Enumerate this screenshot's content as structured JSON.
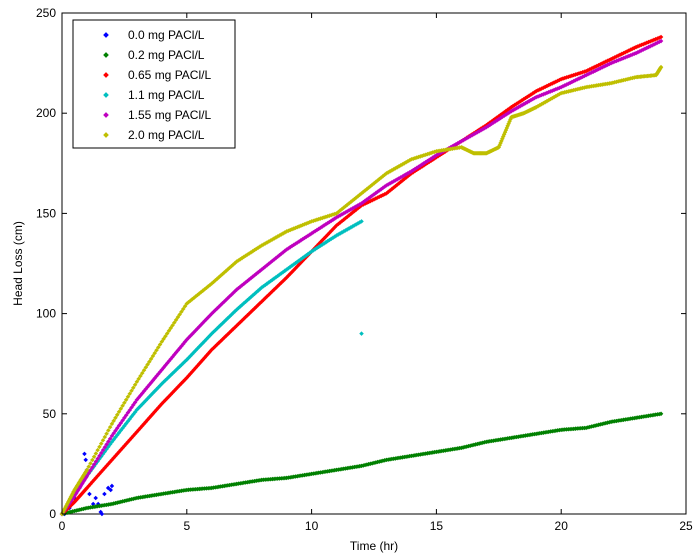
{
  "chart_data": {
    "type": "scatter",
    "title": "",
    "xlabel": "Time (hr)",
    "ylabel": "Head Loss (cm)",
    "xlim": [
      0,
      25
    ],
    "ylim": [
      0,
      250
    ],
    "xticks": [
      "0",
      "5",
      "10",
      "15",
      "20",
      "25"
    ],
    "yticks": [
      "0",
      "50",
      "100",
      "150",
      "200",
      "250"
    ],
    "grid": false,
    "legend_position": "top-left",
    "series": [
      {
        "name": "0.0 mg PACl/L",
        "color": "#0000ff",
        "points": [
          [
            0.1,
            0
          ],
          [
            0.3,
            3
          ],
          [
            0.5,
            8
          ],
          [
            0.7,
            13
          ],
          [
            0.9,
            30
          ],
          [
            0.95,
            27
          ],
          [
            1.0,
            22
          ],
          [
            1.1,
            10
          ],
          [
            1.25,
            5
          ],
          [
            1.35,
            8
          ],
          [
            1.45,
            5
          ],
          [
            1.55,
            1
          ],
          [
            1.6,
            0
          ],
          [
            1.7,
            10
          ],
          [
            1.85,
            13
          ],
          [
            1.95,
            12
          ],
          [
            2.0,
            14
          ]
        ]
      },
      {
        "name": "0.2 mg PACl/L",
        "color": "#008000",
        "points": [
          [
            0,
            0
          ],
          [
            1,
            3
          ],
          [
            2,
            5
          ],
          [
            3,
            8
          ],
          [
            4,
            10
          ],
          [
            5,
            12
          ],
          [
            6,
            13
          ],
          [
            7,
            15
          ],
          [
            8,
            17
          ],
          [
            9,
            18
          ],
          [
            10,
            20
          ],
          [
            11,
            22
          ],
          [
            12,
            24
          ],
          [
            13,
            27
          ],
          [
            14,
            29
          ],
          [
            15,
            31
          ],
          [
            16,
            33
          ],
          [
            17,
            36
          ],
          [
            18,
            38
          ],
          [
            19,
            40
          ],
          [
            20,
            42
          ],
          [
            21,
            43
          ],
          [
            22,
            46
          ],
          [
            23,
            48
          ],
          [
            24,
            50
          ]
        ]
      },
      {
        "name": "0.65 mg PACl/L",
        "color": "#ff0000",
        "points": [
          [
            0,
            0
          ],
          [
            0.5,
            6
          ],
          [
            1,
            13
          ],
          [
            2,
            27
          ],
          [
            3,
            41
          ],
          [
            4,
            55
          ],
          [
            5,
            68
          ],
          [
            6,
            82
          ],
          [
            7,
            94
          ],
          [
            8,
            106
          ],
          [
            9,
            118
          ],
          [
            10,
            131
          ],
          [
            11,
            144
          ],
          [
            12,
            154
          ],
          [
            13,
            160
          ],
          [
            14,
            170
          ],
          [
            15,
            178
          ],
          [
            16,
            186
          ],
          [
            17,
            194
          ],
          [
            18,
            203
          ],
          [
            19,
            211
          ],
          [
            20,
            217
          ],
          [
            21,
            221
          ],
          [
            22,
            227
          ],
          [
            23,
            233
          ],
          [
            24,
            238
          ]
        ]
      },
      {
        "name": "1.1 mg PACl/L",
        "color": "#00bfbf",
        "points": [
          [
            0,
            0
          ],
          [
            0.5,
            10
          ],
          [
            1,
            19
          ],
          [
            2,
            36
          ],
          [
            3,
            52
          ],
          [
            4,
            65
          ],
          [
            5,
            77
          ],
          [
            6,
            90
          ],
          [
            7,
            102
          ],
          [
            8,
            113
          ],
          [
            9,
            122
          ],
          [
            10,
            131
          ],
          [
            11,
            139
          ],
          [
            12,
            146
          ],
          [
            12.0,
            90
          ]
        ]
      },
      {
        "name": "1.55 mg PACl/L",
        "color": "#bf00bf",
        "points": [
          [
            0,
            0
          ],
          [
            0.5,
            9
          ],
          [
            1,
            19
          ],
          [
            2,
            39
          ],
          [
            3,
            57
          ],
          [
            4,
            72
          ],
          [
            5,
            87
          ],
          [
            6,
            100
          ],
          [
            7,
            112
          ],
          [
            8,
            122
          ],
          [
            9,
            132
          ],
          [
            10,
            140
          ],
          [
            11,
            148
          ],
          [
            12,
            155
          ],
          [
            13,
            164
          ],
          [
            14,
            171
          ],
          [
            15,
            179
          ],
          [
            16,
            186
          ],
          [
            17,
            193
          ],
          [
            18,
            201
          ],
          [
            19,
            208
          ],
          [
            20,
            213
          ],
          [
            21,
            219
          ],
          [
            22,
            225
          ],
          [
            23,
            230
          ],
          [
            24,
            236
          ]
        ]
      },
      {
        "name": "2.0 mg PACl/L",
        "color": "#bfbf00",
        "points": [
          [
            0,
            0
          ],
          [
            0.5,
            12
          ],
          [
            1,
            22
          ],
          [
            2,
            45
          ],
          [
            3,
            66
          ],
          [
            4,
            86
          ],
          [
            5,
            105
          ],
          [
            6,
            115
          ],
          [
            7,
            126
          ],
          [
            8,
            134
          ],
          [
            9,
            141
          ],
          [
            10,
            146
          ],
          [
            11,
            150
          ],
          [
            12,
            160
          ],
          [
            13,
            170
          ],
          [
            14,
            177
          ],
          [
            15,
            181
          ],
          [
            16,
            183
          ],
          [
            16.5,
            180
          ],
          [
            17,
            180
          ],
          [
            17.5,
            183
          ],
          [
            18,
            198
          ],
          [
            18.5,
            200
          ],
          [
            19,
            203
          ],
          [
            20,
            210
          ],
          [
            21,
            213
          ],
          [
            22,
            215
          ],
          [
            23,
            218
          ],
          [
            23.8,
            219
          ],
          [
            24,
            223
          ]
        ]
      }
    ]
  }
}
